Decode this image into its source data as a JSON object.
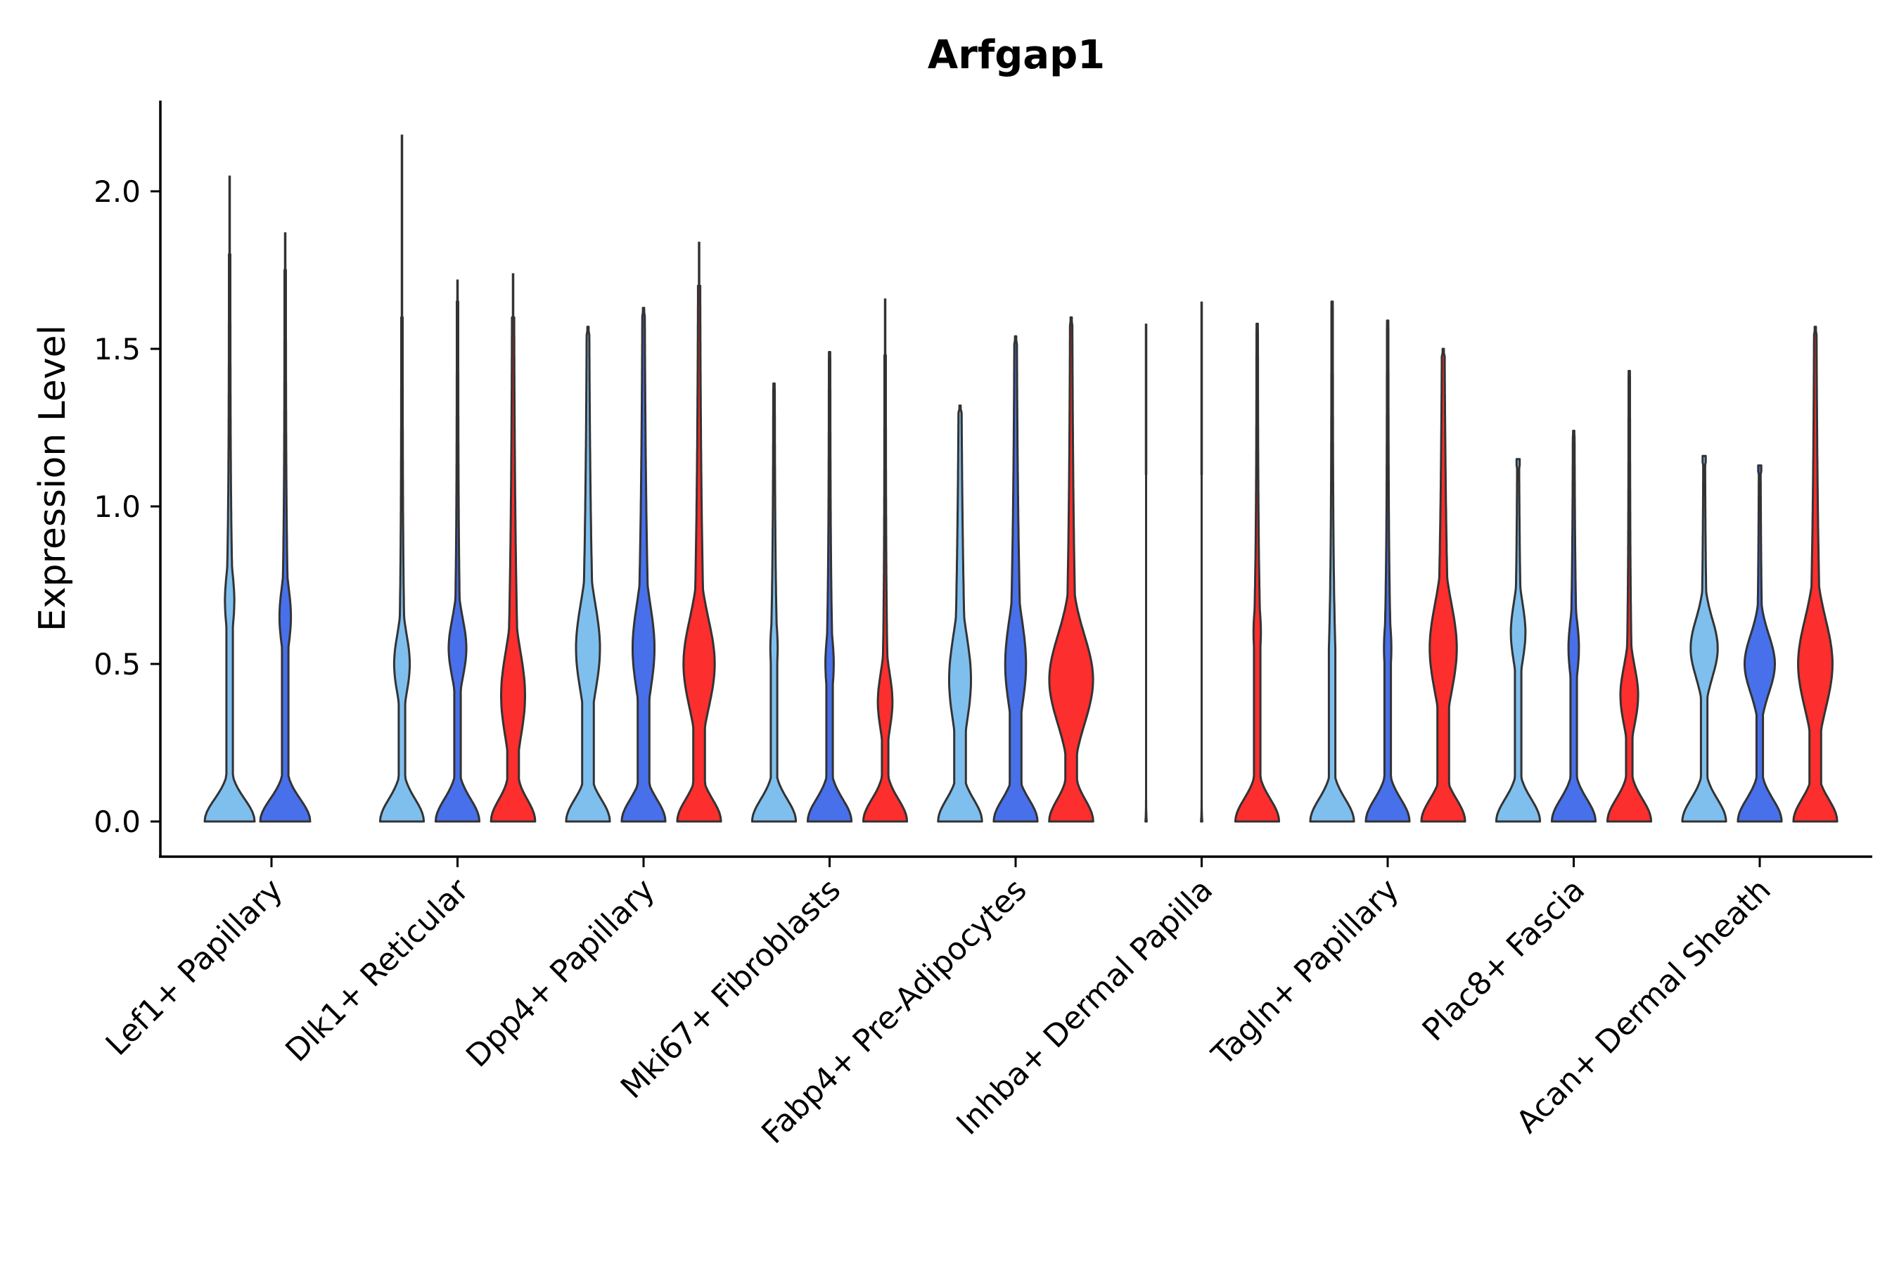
{
  "chart_data": {
    "type": "violin",
    "title": "Arfgap1",
    "xlabel": "",
    "ylabel": "Expression Level",
    "ylim": [
      -0.11,
      2.3
    ],
    "yticks": [
      0.0,
      0.5,
      1.0,
      1.5,
      2.0
    ],
    "ytick_labels": [
      "0.0",
      "0.5",
      "1.0",
      "1.5",
      "2.0"
    ],
    "grid": false,
    "legend": "none",
    "series_colors": [
      "#7fbfee",
      "#4870ea",
      "#fc2e2e"
    ],
    "categories": [
      "Lef1+ Papillary",
      "Dlk1+ Reticular",
      "Dpp4+ Papillary",
      "Mki67+ Fibroblasts",
      "Fabp4+ Pre-Adipocytes",
      "Inhba+ Dermal Papilla",
      "Tagln+ Papillary",
      "Plac8+ Fascia",
      "Acan+ Dermal Sheath"
    ],
    "groups": [
      {
        "category": "Lef1+ Papillary",
        "violins": [
          {
            "series": 0,
            "max": 2.05,
            "base_width": 0.48,
            "mode": 0.7,
            "mode_width": 0.09,
            "shape": "long-tail"
          },
          {
            "series": 1,
            "max": 1.87,
            "base_width": 0.48,
            "mode": 0.65,
            "mode_width": 0.11,
            "shape": "long-tail"
          }
        ]
      },
      {
        "category": "Dlk1+ Reticular",
        "violins": [
          {
            "series": 0,
            "max": 2.18,
            "base_width": 0.42,
            "mode": 0.5,
            "mode_width": 0.15,
            "shape": "long-tail"
          },
          {
            "series": 1,
            "max": 1.72,
            "base_width": 0.42,
            "mode": 0.55,
            "mode_width": 0.17,
            "shape": "long-tail"
          },
          {
            "series": 2,
            "max": 1.74,
            "base_width": 0.42,
            "mode": 0.4,
            "mode_width": 0.23,
            "shape": "broad"
          }
        ]
      },
      {
        "category": "Dpp4+ Papillary",
        "violins": [
          {
            "series": 0,
            "max": 1.57,
            "base_width": 0.42,
            "mode": 0.55,
            "mode_width": 0.23,
            "shape": "broad"
          },
          {
            "series": 1,
            "max": 1.63,
            "base_width": 0.42,
            "mode": 0.55,
            "mode_width": 0.21,
            "shape": "broad"
          },
          {
            "series": 2,
            "max": 1.84,
            "base_width": 0.42,
            "mode": 0.5,
            "mode_width": 0.3,
            "shape": "broad"
          }
        ]
      },
      {
        "category": "Mki67+ Fibroblasts",
        "violins": [
          {
            "series": 0,
            "max": 1.39,
            "base_width": 0.42,
            "mode": 0.55,
            "mode_width": 0.07,
            "shape": "long-tail"
          },
          {
            "series": 1,
            "max": 1.49,
            "base_width": 0.42,
            "mode": 0.5,
            "mode_width": 0.08,
            "shape": "long-tail"
          },
          {
            "series": 2,
            "max": 1.66,
            "base_width": 0.42,
            "mode": 0.38,
            "mode_width": 0.14,
            "shape": "long-tail"
          }
        ]
      },
      {
        "category": "Fabp4+ Pre-Adipocytes",
        "violins": [
          {
            "series": 0,
            "max": 1.32,
            "base_width": 0.42,
            "mode": 0.45,
            "mode_width": 0.21,
            "shape": "broad"
          },
          {
            "series": 1,
            "max": 1.54,
            "base_width": 0.42,
            "mode": 0.5,
            "mode_width": 0.2,
            "shape": "broad"
          },
          {
            "series": 2,
            "max": 1.6,
            "base_width": 0.42,
            "mode": 0.45,
            "mode_width": 0.42,
            "shape": "broad"
          }
        ]
      },
      {
        "category": "Inhba+ Dermal Papilla",
        "violins": [
          {
            "series": 0,
            "max": 1.58,
            "base_width": 0.42,
            "mode": 0.0,
            "mode_width": 0.0,
            "shape": "flat"
          },
          {
            "series": 1,
            "max": 1.65,
            "base_width": 0.42,
            "mode": 0.0,
            "mode_width": 0.0,
            "shape": "flat"
          },
          {
            "series": 2,
            "max": 1.58,
            "base_width": 0.42,
            "mode": 0.6,
            "mode_width": 0.07,
            "shape": "long-tail"
          }
        ]
      },
      {
        "category": "Tagln+ Papillary",
        "violins": [
          {
            "series": 0,
            "max": 1.65,
            "base_width": 0.42,
            "mode": 0.55,
            "mode_width": 0.06,
            "shape": "long-tail"
          },
          {
            "series": 1,
            "max": 1.59,
            "base_width": 0.42,
            "mode": 0.55,
            "mode_width": 0.07,
            "shape": "long-tail"
          },
          {
            "series": 2,
            "max": 1.5,
            "base_width": 0.42,
            "mode": 0.55,
            "mode_width": 0.26,
            "shape": "broad"
          }
        ]
      },
      {
        "category": "Plac8+ Fascia",
        "violins": [
          {
            "series": 0,
            "max": 1.15,
            "base_width": 0.42,
            "mode": 0.6,
            "mode_width": 0.14,
            "shape": "truncated"
          },
          {
            "series": 1,
            "max": 1.24,
            "base_width": 0.42,
            "mode": 0.55,
            "mode_width": 0.1,
            "shape": "long-tail"
          },
          {
            "series": 2,
            "max": 1.43,
            "base_width": 0.42,
            "mode": 0.4,
            "mode_width": 0.17,
            "shape": "long-tail"
          }
        ]
      },
      {
        "category": "Acan+ Dermal Sheath",
        "violins": [
          {
            "series": 0,
            "max": 1.16,
            "base_width": 0.42,
            "mode": 0.55,
            "mode_width": 0.26,
            "shape": "truncated"
          },
          {
            "series": 1,
            "max": 1.13,
            "base_width": 0.42,
            "mode": 0.5,
            "mode_width": 0.29,
            "shape": "truncated"
          },
          {
            "series": 2,
            "max": 1.57,
            "base_width": 0.42,
            "mode": 0.5,
            "mode_width": 0.33,
            "shape": "broad"
          }
        ]
      }
    ]
  }
}
